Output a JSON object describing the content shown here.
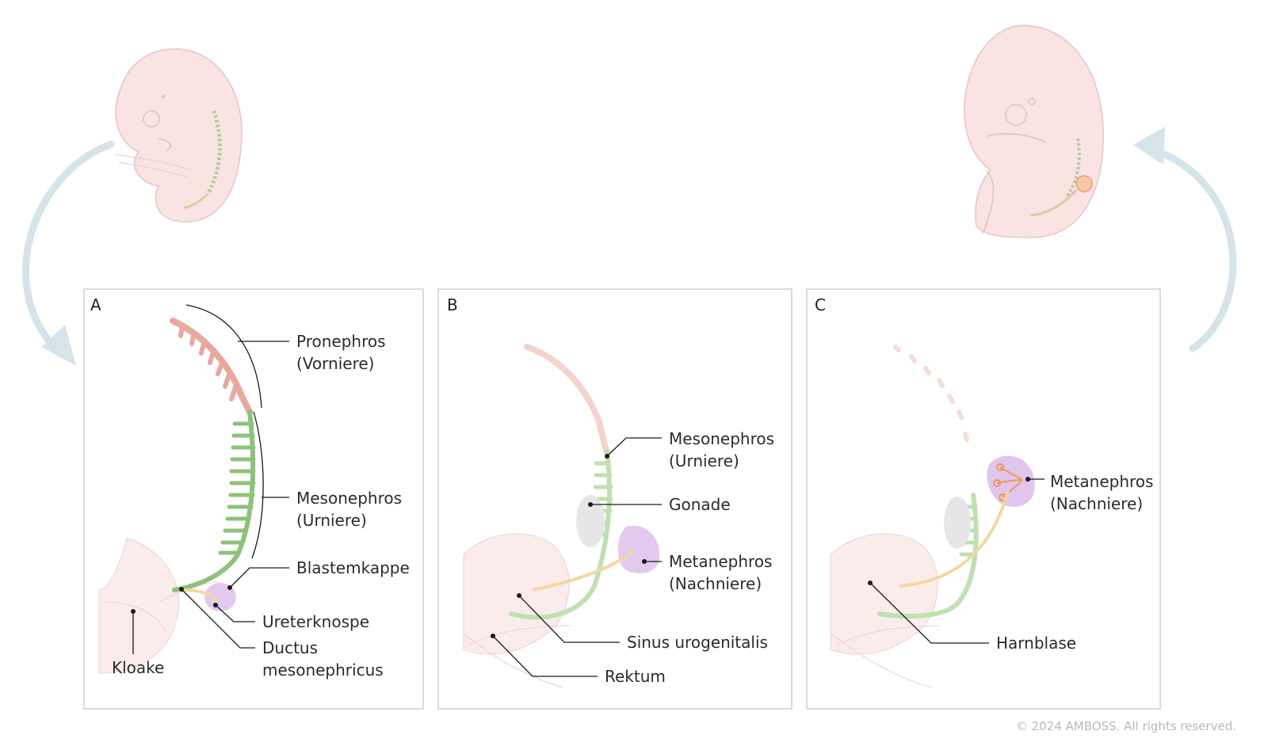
{
  "panels": [
    {
      "letter": "A",
      "labels": {
        "pronephros": [
          "Pronephros",
          "(Vorniere)"
        ],
        "mesonephros": [
          "Mesonephros",
          "(Urniere)"
        ],
        "blastemkappe": "Blastemkappe",
        "ureterknospe": "Ureterknospe",
        "ductus": [
          "Ductus",
          "mesonephricus"
        ],
        "kloake": "Kloake"
      }
    },
    {
      "letter": "B",
      "labels": {
        "mesonephros": [
          "Mesonephros",
          "(Urniere)"
        ],
        "gonade": "Gonade",
        "metanephros": [
          "Metanephros",
          "(Nachniere)"
        ],
        "sinus": "Sinus urogenitalis",
        "rektum": "Rektum"
      }
    },
    {
      "letter": "C",
      "labels": {
        "metanephros": [
          "Metanephros",
          "(Nachniere)"
        ],
        "harnblase": "Harnblase"
      }
    }
  ],
  "copyright": "© 2024 AMBOSS. All rights reserved.",
  "colors": {
    "pronephros": "#e8a79f",
    "mesonephros": "#8fc17a",
    "metanephros": "#d8b8ea",
    "ureter": "#f3d7a2",
    "embryo": "#f9e3e3",
    "arrow": "#d5e3ea",
    "frame": "#c7d1d6"
  }
}
